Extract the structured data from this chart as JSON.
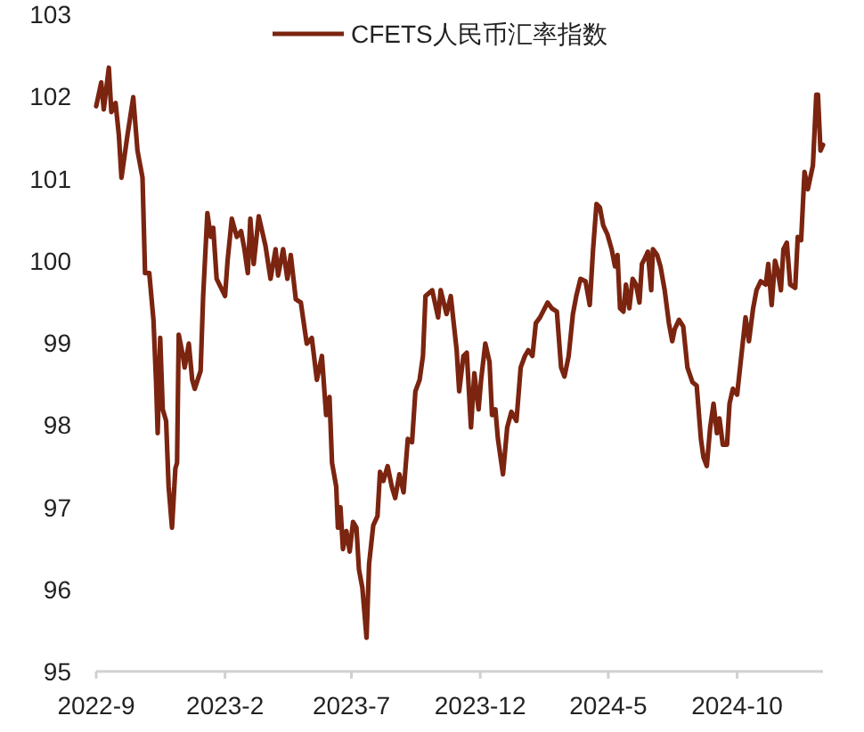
{
  "chart_data": {
    "type": "line",
    "x": [
      "2022-09-01",
      "2022-09-07",
      "2022-09-10",
      "2022-09-16",
      "2022-09-19",
      "2022-09-24",
      "2022-09-28",
      "2022-10-01",
      "2022-10-08",
      "2022-10-15",
      "2022-10-20",
      "2022-10-26",
      "2022-10-29",
      "2022-11-03",
      "2022-11-08",
      "2022-11-11",
      "2022-11-13",
      "2022-11-16",
      "2022-11-19",
      "2022-11-23",
      "2022-11-26",
      "2022-11-30",
      "2022-12-04",
      "2022-12-06",
      "2022-12-08",
      "2022-12-13",
      "2022-12-15",
      "2022-12-20",
      "2022-12-24",
      "2022-12-27",
      "2023-01-03",
      "2023-01-06",
      "2023-01-11",
      "2023-01-15",
      "2023-01-18",
      "2023-01-22",
      "2023-02-01",
      "2023-02-04",
      "2023-02-09",
      "2023-02-15",
      "2023-02-20",
      "2023-02-24",
      "2023-02-28",
      "2023-03-03",
      "2023-03-07",
      "2023-03-13",
      "2023-03-17",
      "2023-03-21",
      "2023-03-27",
      "2023-04-02",
      "2023-04-05",
      "2023-04-11",
      "2023-04-16",
      "2023-04-20",
      "2023-04-26",
      "2023-05-02",
      "2023-05-09",
      "2023-05-15",
      "2023-05-21",
      "2023-05-27",
      "2023-06-01",
      "2023-06-05",
      "2023-06-08",
      "2023-06-13",
      "2023-06-15",
      "2023-06-18",
      "2023-06-21",
      "2023-06-25",
      "2023-06-29",
      "2023-07-03",
      "2023-07-07",
      "2023-07-10",
      "2023-07-14",
      "2023-07-19",
      "2023-07-22",
      "2023-07-27",
      "2023-08-01",
      "2023-08-04",
      "2023-08-08",
      "2023-08-13",
      "2023-08-18",
      "2023-08-22",
      "2023-08-27",
      "2023-09-01",
      "2023-09-06",
      "2023-09-11",
      "2023-09-15",
      "2023-09-20",
      "2023-09-24",
      "2023-09-27",
      "2023-10-05",
      "2023-10-12",
      "2023-10-15",
      "2023-10-22",
      "2023-10-27",
      "2023-11-03",
      "2023-11-06",
      "2023-11-11",
      "2023-11-15",
      "2023-11-20",
      "2023-11-24",
      "2023-11-29",
      "2023-12-02",
      "2023-12-07",
      "2023-12-12",
      "2023-12-15",
      "2023-12-19",
      "2023-12-22",
      "2023-12-28",
      "2024-01-02",
      "2024-01-07",
      "2024-01-13",
      "2024-01-18",
      "2024-01-23",
      "2024-01-27",
      "2024-02-01",
      "2024-02-05",
      "2024-02-10",
      "2024-02-19",
      "2024-02-24",
      "2024-03-01",
      "2024-03-06",
      "2024-03-10",
      "2024-03-15",
      "2024-03-20",
      "2024-03-24",
      "2024-03-29",
      "2024-04-04",
      "2024-04-09",
      "2024-04-13",
      "2024-04-17",
      "2024-04-21",
      "2024-04-25",
      "2024-04-30",
      "2024-05-05",
      "2024-05-09",
      "2024-05-12",
      "2024-05-15",
      "2024-05-19",
      "2024-05-22",
      "2024-05-26",
      "2024-05-30",
      "2024-06-03",
      "2024-06-07",
      "2024-06-10",
      "2024-06-14",
      "2024-06-17",
      "2024-06-21",
      "2024-06-23",
      "2024-06-28",
      "2024-07-02",
      "2024-07-07",
      "2024-07-12",
      "2024-07-16",
      "2024-07-19",
      "2024-07-24",
      "2024-07-29",
      "2024-08-03",
      "2024-08-09",
      "2024-08-14",
      "2024-08-19",
      "2024-08-22",
      "2024-08-26",
      "2024-08-30",
      "2024-09-03",
      "2024-09-07",
      "2024-09-10",
      "2024-09-14",
      "2024-09-19",
      "2024-09-22",
      "2024-09-26",
      "2024-10-01",
      "2024-10-06",
      "2024-10-11",
      "2024-10-15",
      "2024-10-20",
      "2024-10-24",
      "2024-10-29",
      "2024-11-04",
      "2024-11-07",
      "2024-11-11",
      "2024-11-15",
      "2024-11-18",
      "2024-11-22",
      "2024-11-25",
      "2024-11-29",
      "2024-12-03",
      "2024-12-09",
      "2024-12-12",
      "2024-12-16",
      "2024-12-20",
      "2024-12-24",
      "2024-12-30",
      "2025-01-03",
      "2025-01-05",
      "2025-01-08",
      "2025-01-11"
    ],
    "series": [
      {
        "name": "CFETS人民币汇率指数",
        "color": "#7b2410",
        "values": [
          101.88,
          102.17,
          101.84,
          102.35,
          101.81,
          101.92,
          101.52,
          101.01,
          101.52,
          101.99,
          101.34,
          101.01,
          99.85,
          99.85,
          99.28,
          98.55,
          97.9,
          99.06,
          98.19,
          98.05,
          97.25,
          96.75,
          97.47,
          97.54,
          99.1,
          98.84,
          98.7,
          98.99,
          98.55,
          98.44,
          98.66,
          99.57,
          100.58,
          100.29,
          100.4,
          99.78,
          99.57,
          100.0,
          100.51,
          100.29,
          100.36,
          100.14,
          99.85,
          100.51,
          99.96,
          100.54,
          100.36,
          100.18,
          99.78,
          100.14,
          99.82,
          100.14,
          99.78,
          100.07,
          99.53,
          99.49,
          98.99,
          99.06,
          98.55,
          98.84,
          98.12,
          98.34,
          97.54,
          97.25,
          96.75,
          97.0,
          96.49,
          96.71,
          96.46,
          96.82,
          96.75,
          96.24,
          96.02,
          95.41,
          96.31,
          96.78,
          96.89,
          97.43,
          97.32,
          97.5,
          97.25,
          97.11,
          97.4,
          97.18,
          97.83,
          97.79,
          98.41,
          98.55,
          98.84,
          99.57,
          99.64,
          99.31,
          99.64,
          99.35,
          99.57,
          98.91,
          98.41,
          98.84,
          98.88,
          97.97,
          98.63,
          98.19,
          98.55,
          98.99,
          98.77,
          98.12,
          98.19,
          97.83,
          97.4,
          97.97,
          98.16,
          98.05,
          98.7,
          98.84,
          98.91,
          98.84,
          99.24,
          99.31,
          99.49,
          99.42,
          99.38,
          98.7,
          98.59,
          98.84,
          99.35,
          99.57,
          99.78,
          99.75,
          99.46,
          100.14,
          100.69,
          100.65,
          100.43,
          100.32,
          100.14,
          99.93,
          100.07,
          99.42,
          99.38,
          99.71,
          99.42,
          99.78,
          99.71,
          99.49,
          99.96,
          100.04,
          100.11,
          99.64,
          100.14,
          100.07,
          99.93,
          99.64,
          99.24,
          99.02,
          99.17,
          99.28,
          99.2,
          98.7,
          98.52,
          98.48,
          97.83,
          97.61,
          97.5,
          97.97,
          98.26,
          97.9,
          98.08,
          97.76,
          97.76,
          98.26,
          98.44,
          98.37,
          98.84,
          99.31,
          99.02,
          99.42,
          99.64,
          99.75,
          99.71,
          99.96,
          99.46,
          100.0,
          99.89,
          99.64,
          100.14,
          100.22,
          99.71,
          99.67,
          100.29,
          100.25,
          101.08,
          100.87,
          101.16,
          102.02,
          102.02,
          101.34,
          101.41
        ]
      }
    ],
    "xlim": [
      "2022-09-01",
      "2025-01-11"
    ],
    "xticks": [
      {
        "value": "2022-09-01",
        "label": "2022-9"
      },
      {
        "value": "2023-02-01",
        "label": "2023-2"
      },
      {
        "value": "2023-07-01",
        "label": "2023-7"
      },
      {
        "value": "2023-12-01",
        "label": "2023-12"
      },
      {
        "value": "2024-05-01",
        "label": "2024-5"
      },
      {
        "value": "2024-10-01",
        "label": "2024-10"
      }
    ],
    "ylim": [
      95,
      103
    ],
    "yticks": [
      95,
      96,
      97,
      98,
      99,
      100,
      101,
      102,
      103
    ],
    "legend": "top",
    "line_style": "solid",
    "marker": "none"
  }
}
